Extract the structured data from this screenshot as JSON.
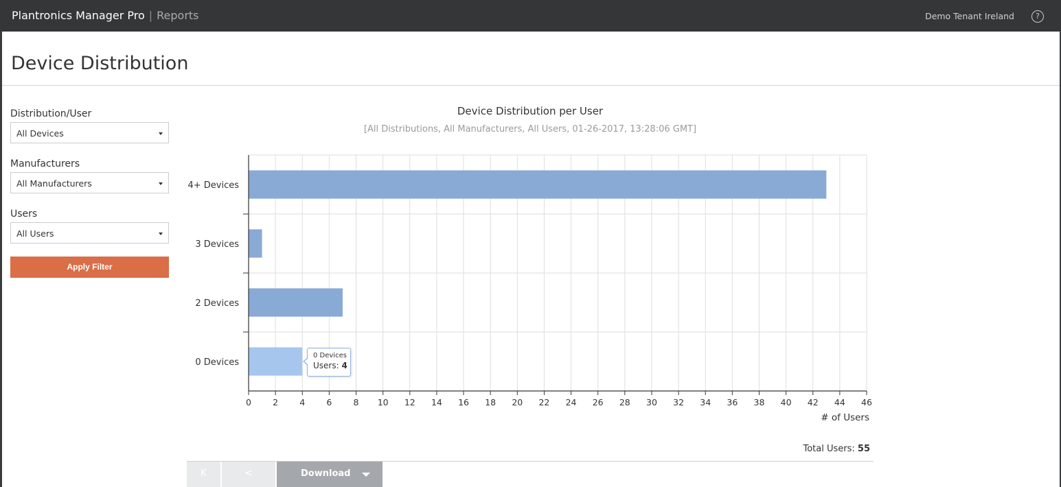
{
  "header": {
    "app_name": "Plantronics Manager Pro",
    "separator": "|",
    "section": "Reports",
    "tenant": "Demo Tenant Ireland",
    "help_glyph": "?"
  },
  "page": {
    "title": "Device Distribution"
  },
  "filters": {
    "distribution_label": "Distribution/User",
    "distribution_value": "All Devices",
    "manufacturers_label": "Manufacturers",
    "manufacturers_value": "All Manufacturers",
    "users_label": "Users",
    "users_value": "All Users",
    "apply_label": "Apply Filter"
  },
  "chart_data": {
    "type": "bar",
    "orientation": "horizontal",
    "title": "Device Distribution per User",
    "subtitle": "[All Distributions, All Manufacturers, All Users, 01-26-2017, 13:28:06 GMT]",
    "categories": [
      "4+ Devices",
      "3 Devices",
      "2 Devices",
      "0 Devices"
    ],
    "values": [
      43,
      1,
      7,
      4
    ],
    "xlabel": "# of Users",
    "ylabel": "",
    "xlim": [
      0,
      46
    ],
    "x_ticks": [
      0,
      2,
      4,
      6,
      8,
      10,
      12,
      14,
      16,
      18,
      20,
      22,
      24,
      26,
      28,
      30,
      32,
      34,
      36,
      38,
      40,
      42,
      44,
      46
    ],
    "grid": true,
    "bar_color": "#8aaad6",
    "highlight_color": "#a6c6ee",
    "highlighted_index": 3,
    "tooltip": {
      "category": "0 Devices",
      "label": "Users:",
      "value": "4"
    }
  },
  "summary": {
    "total_label": "Total Users:",
    "total_value": "55"
  },
  "pager": {
    "first_glyph": "K",
    "prev_glyph": "<",
    "download_label": "Download"
  },
  "colors": {
    "topbar": "#353638",
    "accent": "#d96e47"
  }
}
